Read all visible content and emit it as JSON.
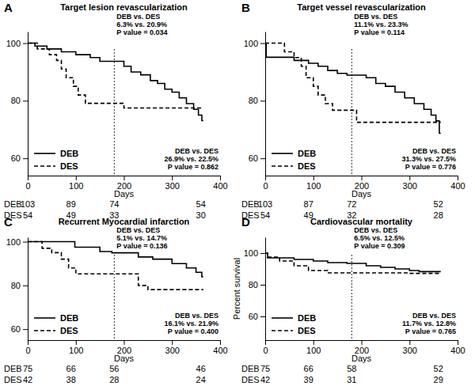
{
  "chart_data": [
    {
      "type": "step",
      "label": "A",
      "title": "Target lesion revascularization",
      "x_label": "Days",
      "xlim": [
        0,
        400
      ],
      "xticks": [
        0,
        100,
        200,
        300,
        400
      ],
      "ylim": [
        54,
        104
      ],
      "yticks": [
        60,
        80,
        100
      ],
      "grid": false,
      "legend": "lower left",
      "landmark": 180,
      "annotations": [
        [
          "DEB vs. DES",
          "6.3% vs. 20.9%",
          "P value = 0.034"
        ],
        [
          "DEB vs. DES",
          "26.9% vs. 22.5%",
          "P value = 0.862"
        ]
      ],
      "series": [
        {
          "name": "DEB",
          "color": "#000000",
          "line_style": "solid",
          "x": [
            0,
            15,
            40,
            70,
            100,
            130,
            150,
            200,
            215,
            235,
            255,
            270,
            285,
            300,
            315,
            330,
            345,
            355,
            362,
            365
          ],
          "values": [
            100,
            99,
            98,
            97,
            96,
            95,
            93.7,
            92,
            90,
            89,
            87,
            86,
            84,
            83,
            81,
            79,
            77,
            75,
            73.1,
            73.1
          ]
        },
        {
          "name": "DES",
          "color": "#000000",
          "line_style": "dashed",
          "x": [
            0,
            20,
            45,
            60,
            70,
            80,
            95,
            105,
            120,
            200,
            365
          ],
          "values": [
            100,
            98,
            96,
            94,
            91,
            88,
            85,
            82,
            79.1,
            77.5,
            77.5
          ]
        }
      ],
      "risk_table": {
        "x": [
          0,
          90,
          180,
          360
        ],
        "rows": [
          {
            "name": "DEB",
            "values": [
              103,
              89,
              74,
              54
            ]
          },
          {
            "name": "DES",
            "values": [
              54,
              49,
              33,
              30
            ]
          }
        ]
      }
    },
    {
      "type": "step",
      "label": "B",
      "title": "Target vessel revascularization",
      "x_label": "Days",
      "xlim": [
        0,
        400
      ],
      "xticks": [
        0,
        100,
        200,
        300,
        400
      ],
      "ylim": [
        54,
        104
      ],
      "yticks": [
        60,
        80,
        100
      ],
      "grid": false,
      "legend": "lower left",
      "landmark": 180,
      "annotations": [
        [
          "DEB vs. DES",
          "11.1% vs. 23.3%",
          "P value = 0.114"
        ],
        [
          "DEB vs. DES",
          "31.3% vs. 27.5%",
          "P value = 0.776"
        ]
      ],
      "series": [
        {
          "name": "DEB",
          "color": "#000000",
          "line_style": "solid",
          "x": [
            0,
            2,
            60,
            90,
            110,
            130,
            150,
            170,
            210,
            230,
            250,
            270,
            290,
            310,
            330,
            345,
            355,
            362,
            365
          ],
          "values": [
            100,
            95.1,
            94,
            93,
            92,
            90.5,
            89.5,
            88.9,
            88,
            86,
            85,
            83,
            81,
            79,
            77,
            75,
            73,
            68.7,
            68.7
          ]
        },
        {
          "name": "DES",
          "color": "#000000",
          "line_style": "dashed",
          "x": [
            0,
            40,
            60,
            75,
            85,
            100,
            110,
            125,
            140,
            190,
            365
          ],
          "values": [
            100,
            97,
            95,
            92,
            88,
            85,
            82,
            79,
            76.7,
            72.5,
            72.5
          ]
        }
      ],
      "risk_table": {
        "x": [
          0,
          90,
          180,
          360
        ],
        "rows": [
          {
            "name": "DEB",
            "values": [
              103,
              87,
              72,
              52
            ]
          },
          {
            "name": "DES",
            "values": [
              54,
              49,
              32,
              28
            ]
          }
        ]
      }
    },
    {
      "type": "step",
      "label": "C",
      "title": "Recurrent Myocardial infarction",
      "x_label": "Days",
      "xlim": [
        0,
        400
      ],
      "xticks": [
        0,
        100,
        200,
        300,
        400
      ],
      "ylim": [
        55,
        102
      ],
      "yticks": [
        60,
        80,
        100
      ],
      "grid": false,
      "legend": "lower left",
      "landmark": 180,
      "annotations": [
        [
          "DEB vs. DES",
          "5.1% vs. 14.7%",
          "P value = 0.136"
        ],
        [
          "DEB vs. DES",
          "16.1% vs. 21.9%",
          "P value = 0.400"
        ]
      ],
      "series": [
        {
          "name": "DEB",
          "color": "#000000",
          "line_style": "solid",
          "x": [
            0,
            98,
            150,
            175,
            230,
            260,
            300,
            330,
            350,
            362,
            365
          ],
          "values": [
            100,
            97.5,
            95.5,
            94.9,
            93,
            92,
            90,
            88,
            86,
            83.9,
            83.9
          ]
        },
        {
          "name": "DES",
          "color": "#000000",
          "line_style": "dashed",
          "x": [
            0,
            30,
            50,
            70,
            85,
            100,
            230,
            250,
            365
          ],
          "values": [
            100,
            97,
            95,
            92,
            88,
            85.3,
            80,
            78.1,
            78.1
          ]
        }
      ],
      "risk_table": {
        "x": [
          0,
          90,
          180,
          360
        ],
        "rows": [
          {
            "name": "DEB",
            "values": [
              75,
              66,
              56,
              46
            ]
          },
          {
            "name": "DES",
            "values": [
              42,
              38,
              28,
              24
            ]
          }
        ]
      }
    },
    {
      "type": "step",
      "label": "D",
      "title": "Cardiovascular mortality",
      "x_label": "Days",
      "y_label": "Percent survival",
      "xlim": [
        0,
        400
      ],
      "xticks": [
        0,
        100,
        200,
        300,
        400
      ],
      "ylim": [
        45,
        110
      ],
      "yticks": [
        60,
        80,
        100
      ],
      "grid": false,
      "legend": "lower left",
      "landmark": 180,
      "annotations": [
        [
          "DEB vs. DES",
          "6.5% vs. 12.5%",
          "P value = 0.309"
        ],
        [
          "DEB vs. DES",
          "11.7% vs. 12.8%",
          "P value = 0.765"
        ]
      ],
      "series": [
        {
          "name": "DEB",
          "color": "#000000",
          "line_style": "solid",
          "x": [
            0,
            5,
            60,
            100,
            130,
            170,
            210,
            240,
            270,
            300,
            320,
            365
          ],
          "values": [
            100,
            97,
            96,
            95,
            94,
            93.5,
            92,
            91,
            90,
            89,
            88.3,
            88.3
          ]
        },
        {
          "name": "DES",
          "color": "#000000",
          "line_style": "dashed",
          "x": [
            0,
            5,
            30,
            60,
            90,
            130,
            300,
            365
          ],
          "values": [
            100,
            97.5,
            95,
            92,
            89,
            87.5,
            87.2,
            87.2
          ]
        }
      ],
      "risk_table": {
        "x": [
          0,
          90,
          180,
          360
        ],
        "rows": [
          {
            "name": "DEB",
            "values": [
              75,
              66,
              58,
              52
            ]
          },
          {
            "name": "DES",
            "values": [
              42,
              39,
              31,
              29
            ]
          }
        ]
      }
    }
  ]
}
